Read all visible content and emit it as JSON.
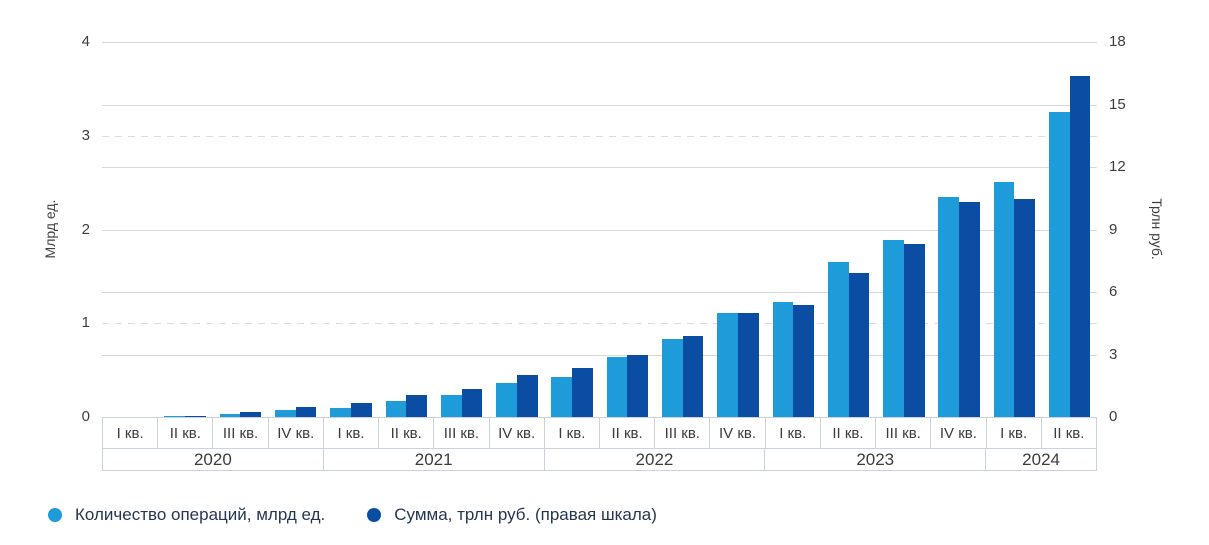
{
  "chart_data": {
    "type": "bar",
    "title": "",
    "x_groups": [
      {
        "year": "2020",
        "quarters": [
          "I кв.",
          "II кв.",
          "III кв.",
          "IV кв."
        ]
      },
      {
        "year": "2021",
        "quarters": [
          "I кв.",
          "II кв.",
          "III кв.",
          "IV кв."
        ]
      },
      {
        "year": "2022",
        "quarters": [
          "I кв.",
          "II кв.",
          "III кв.",
          "IV кв."
        ]
      },
      {
        "year": "2023",
        "quarters": [
          "I кв.",
          "II кв.",
          "III кв.",
          "IV кв."
        ]
      },
      {
        "year": "2024",
        "quarters": [
          "I кв.",
          "II кв."
        ]
      }
    ],
    "series": [
      {
        "name": "Количество операций, млрд ед.",
        "axis": "left",
        "color": "#1e9cd9",
        "values": [
          0.003,
          0.008,
          0.03,
          0.07,
          0.1,
          0.17,
          0.24,
          0.36,
          0.43,
          0.64,
          0.83,
          1.11,
          1.23,
          1.65,
          1.89,
          2.35,
          2.51,
          3.25
        ]
      },
      {
        "name": "Сумма, трлн руб. (правая шкала)",
        "axis": "right",
        "color": "#0b4da2",
        "values": [
          0.01,
          0.03,
          0.25,
          0.5,
          0.65,
          1.05,
          1.35,
          2.0,
          2.35,
          3.0,
          3.9,
          5.0,
          5.4,
          6.9,
          8.3,
          10.3,
          10.45,
          16.35
        ]
      }
    ],
    "left_axis": {
      "label": "Млрд ед.",
      "ticks": [
        0,
        1,
        2,
        3,
        4
      ],
      "min": 0,
      "max": 4
    },
    "right_axis": {
      "label": "Трлн руб.",
      "ticks": [
        0,
        3,
        6,
        9,
        12,
        15,
        18
      ],
      "min": 0,
      "max": 18
    },
    "gridlines": {
      "solid_right_values": [
        3,
        6,
        9,
        12,
        15,
        18
      ],
      "dashed_left_values": [
        1,
        3
      ]
    },
    "legend_position": "bottom-left"
  },
  "legend": {
    "items": [
      {
        "label": "Количество операций, млрд ед.",
        "color": "#1e9cd9"
      },
      {
        "label": "Сумма, трлн руб. (правая шкала)",
        "color": "#0b4da2"
      }
    ]
  }
}
